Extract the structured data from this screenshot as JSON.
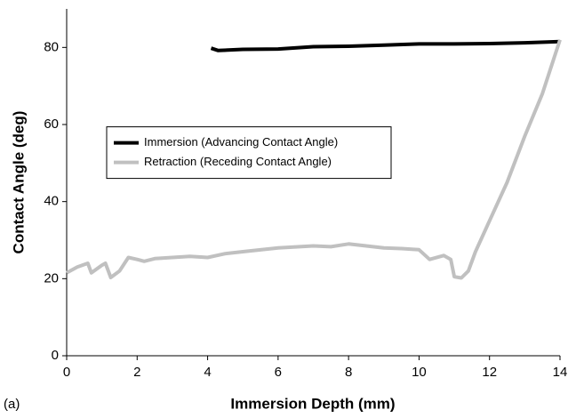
{
  "chart_data": {
    "type": "line",
    "xlabel": "Immersion Depth (mm)",
    "ylabel": "Contact Angle (deg)",
    "annotation": "(a)",
    "xlim": [
      0,
      14
    ],
    "xticks": [
      0,
      2,
      4,
      6,
      8,
      10,
      12,
      14
    ],
    "ylim": [
      0,
      90
    ],
    "yticks": [
      0,
      20,
      40,
      60,
      80
    ],
    "grid": false,
    "legend": "center-left",
    "series": [
      {
        "name": "Immersion (Advancing Contact Angle)",
        "color": "#000000",
        "x": [
          4.1,
          4.3,
          5,
          6,
          7,
          8,
          9,
          10,
          11,
          12,
          13,
          14
        ],
        "values": [
          79.8,
          79.2,
          79.5,
          79.6,
          80.2,
          80.3,
          80.6,
          80.9,
          80.9,
          81,
          81.2,
          81.5
        ]
      },
      {
        "name": "Retraction (Receding Contact Angle)",
        "color": "#c0c0c0",
        "x": [
          0,
          0.3,
          0.6,
          0.7,
          1,
          1.1,
          1.25,
          1.5,
          1.75,
          2,
          2.2,
          2.5,
          3,
          3.5,
          4,
          4.5,
          5,
          6,
          7,
          7.5,
          8,
          8.5,
          9,
          9.5,
          10,
          10.3,
          10.7,
          10.9,
          11,
          11.2,
          11.4,
          11.6,
          12,
          12.5,
          13,
          13.5,
          14
        ],
        "values": [
          21.5,
          23,
          24,
          21.5,
          23.5,
          24,
          20.3,
          22,
          25.5,
          25,
          24.5,
          25.2,
          25.5,
          25.8,
          25.5,
          26.5,
          27,
          28,
          28.5,
          28.3,
          29,
          28.5,
          28,
          27.8,
          27.5,
          25,
          26,
          25,
          20.5,
          20.2,
          22,
          27,
          35,
          45,
          57,
          68,
          82
        ]
      }
    ]
  }
}
